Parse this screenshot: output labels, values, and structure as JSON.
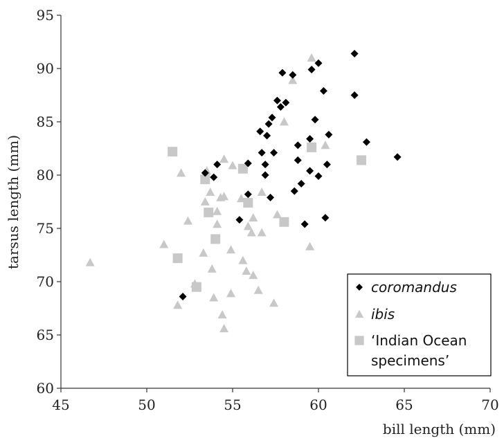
{
  "chart_data": {
    "type": "scatter",
    "xlabel": "bill length (mm)",
    "ylabel": "tarsus length (mm)",
    "xlim": [
      45,
      70
    ],
    "ylim": [
      60,
      95
    ],
    "xticks": [
      "45",
      "50",
      "55",
      "60",
      "65",
      "70"
    ],
    "yticks": [
      "60",
      "65",
      "70",
      "75",
      "80",
      "85",
      "90",
      "95"
    ],
    "grid": false,
    "legend_position": "bottom-right",
    "series": [
      {
        "name": "coromandus",
        "name_style": "italic",
        "marker": "diamond",
        "color": "#000000",
        "points": [
          [
            52.1,
            68.6
          ],
          [
            53.4,
            80.2
          ],
          [
            53.9,
            79.8
          ],
          [
            54.1,
            81.0
          ],
          [
            55.4,
            75.8
          ],
          [
            55.9,
            81.1
          ],
          [
            55.9,
            78.2
          ],
          [
            56.6,
            84.1
          ],
          [
            56.7,
            82.1
          ],
          [
            56.9,
            81.0
          ],
          [
            56.9,
            80.0
          ],
          [
            57.0,
            83.7
          ],
          [
            57.1,
            84.8
          ],
          [
            57.2,
            77.9
          ],
          [
            57.3,
            85.4
          ],
          [
            57.4,
            82.1
          ],
          [
            57.6,
            87.0
          ],
          [
            57.8,
            86.4
          ],
          [
            57.9,
            89.6
          ],
          [
            58.1,
            86.8
          ],
          [
            58.5,
            89.4
          ],
          [
            58.6,
            78.5
          ],
          [
            58.8,
            82.8
          ],
          [
            58.8,
            81.4
          ],
          [
            59.0,
            79.2
          ],
          [
            59.2,
            75.4
          ],
          [
            59.5,
            83.4
          ],
          [
            59.5,
            80.4
          ],
          [
            59.6,
            89.9
          ],
          [
            59.8,
            85.2
          ],
          [
            60.0,
            90.5
          ],
          [
            60.0,
            79.9
          ],
          [
            60.3,
            87.9
          ],
          [
            60.4,
            76.0
          ],
          [
            60.5,
            81.0
          ],
          [
            60.6,
            83.8
          ],
          [
            62.1,
            91.4
          ],
          [
            62.1,
            87.5
          ],
          [
            62.8,
            83.1
          ],
          [
            64.6,
            81.7
          ]
        ]
      },
      {
        "name": "ibis",
        "name_style": "italic",
        "marker": "triangle",
        "color": "#c8c8c8",
        "points": [
          [
            46.7,
            71.8
          ],
          [
            51.0,
            73.5
          ],
          [
            51.8,
            67.8
          ],
          [
            52.0,
            80.2
          ],
          [
            52.4,
            75.7
          ],
          [
            52.8,
            69.8
          ],
          [
            53.3,
            72.7
          ],
          [
            53.4,
            77.5
          ],
          [
            53.5,
            80.4
          ],
          [
            53.7,
            78.4
          ],
          [
            53.8,
            71.2
          ],
          [
            53.9,
            68.5
          ],
          [
            54.1,
            76.6
          ],
          [
            54.1,
            75.4
          ],
          [
            54.3,
            77.9
          ],
          [
            54.4,
            66.9
          ],
          [
            54.5,
            65.6
          ],
          [
            54.5,
            81.5
          ],
          [
            54.5,
            78.0
          ],
          [
            54.9,
            73.0
          ],
          [
            54.9,
            68.9
          ],
          [
            55.0,
            80.9
          ],
          [
            55.5,
            77.8
          ],
          [
            55.6,
            72.0
          ],
          [
            55.8,
            71.0
          ],
          [
            55.9,
            75.2
          ],
          [
            56.1,
            74.6
          ],
          [
            56.2,
            76.0
          ],
          [
            56.2,
            70.6
          ],
          [
            56.5,
            69.2
          ],
          [
            56.7,
            78.4
          ],
          [
            56.7,
            74.6
          ],
          [
            57.4,
            68.0
          ],
          [
            57.6,
            76.3
          ],
          [
            58.0,
            85.0
          ],
          [
            58.5,
            88.9
          ],
          [
            59.5,
            73.3
          ],
          [
            59.6,
            91.0
          ],
          [
            60.4,
            82.8
          ]
        ]
      },
      {
        "name": "‘Indian Ocean specimens’",
        "name_lines": [
          "‘Indian Ocean",
          "specimens’"
        ],
        "name_style": "normal",
        "marker": "square",
        "color": "#c8c8c8",
        "points": [
          [
            51.5,
            82.2
          ],
          [
            51.8,
            72.2
          ],
          [
            52.9,
            69.5
          ],
          [
            53.4,
            79.6
          ],
          [
            53.6,
            76.5
          ],
          [
            54.0,
            74.0
          ],
          [
            55.6,
            80.6
          ],
          [
            55.9,
            77.4
          ],
          [
            58.0,
            75.6
          ],
          [
            59.6,
            82.6
          ],
          [
            62.5,
            81.4
          ]
        ]
      }
    ]
  }
}
